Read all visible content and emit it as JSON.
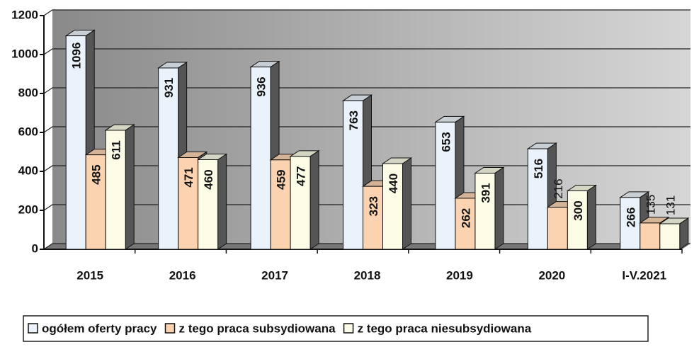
{
  "chart_data": {
    "type": "bar",
    "categories": [
      "2015",
      "2016",
      "2017",
      "2018",
      "2019",
      "2020",
      "I-V.2021"
    ],
    "series": [
      {
        "name": "ogółem oferty pracy",
        "color": "#eaf3fb",
        "values": [
          1096,
          931,
          936,
          763,
          653,
          516,
          266
        ]
      },
      {
        "name": "z tego praca subsydiowana",
        "color": "#fbd3b0",
        "values": [
          485,
          471,
          459,
          323,
          262,
          216,
          135
        ]
      },
      {
        "name": "z tego praca niesubsydiowana",
        "color": "#fbfbe6",
        "values": [
          611,
          460,
          477,
          440,
          391,
          300,
          131
        ]
      }
    ],
    "ylim": [
      0,
      1200
    ],
    "yticks": [
      0,
      200,
      400,
      600,
      800,
      1000,
      1200
    ],
    "grid": true
  }
}
